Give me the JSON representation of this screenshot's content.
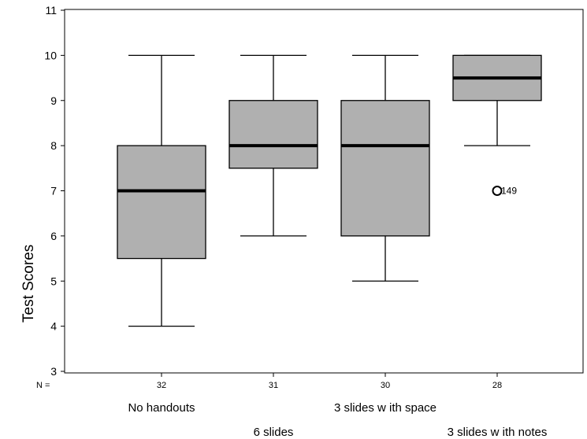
{
  "chart_data": {
    "type": "boxplot",
    "ylabel": "Test Scores",
    "ylim": [
      3,
      11
    ],
    "yticks": [
      3,
      4,
      5,
      6,
      7,
      8,
      9,
      10,
      11
    ],
    "n_prefix": "N =",
    "grid": false,
    "categories": [
      "No handouts",
      "6 slides",
      "3 slides w ith space",
      "3 slides w ith notes"
    ],
    "n": [
      "32",
      "31",
      "30",
      "28"
    ],
    "boxes": [
      {
        "min": 4,
        "q1": 5.5,
        "median": 7,
        "q3": 8,
        "max": 10
      },
      {
        "min": 6,
        "q1": 7.5,
        "median": 8,
        "q3": 9,
        "max": 10
      },
      {
        "min": 5,
        "q1": 6,
        "median": 8,
        "q3": 9,
        "max": 10
      },
      {
        "min": 8,
        "q1": 9,
        "median": 9.5,
        "q3": 10,
        "max": 10
      }
    ],
    "outliers": [
      {
        "category_index": 3,
        "value": 7,
        "label": "149"
      }
    ],
    "box_fill": "#b0b0b0",
    "line_color": "#000000"
  }
}
